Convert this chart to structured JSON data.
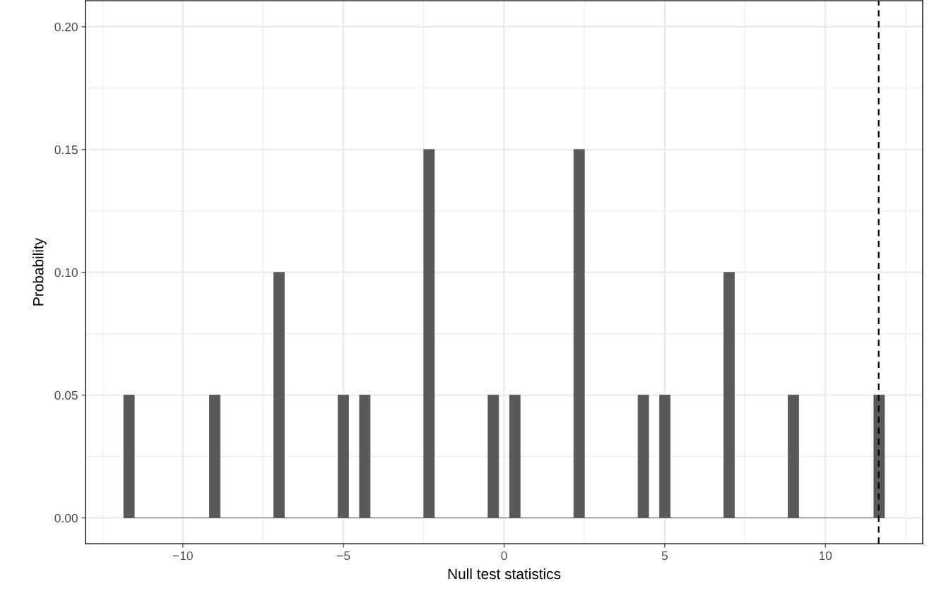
{
  "chart_data": {
    "type": "histogram",
    "xlabel": "Null test statistics",
    "ylabel": "Probability",
    "bins": [
      -11.84,
      -11.51,
      -11.17,
      -10.84,
      -10.51,
      -10.17,
      -9.84,
      -9.51,
      -9.17,
      -8.84,
      -8.5,
      -8.17,
      -7.84,
      -7.5,
      -7.17,
      -6.84,
      -6.5,
      -6.17,
      -5.84,
      -5.5,
      -5.17,
      -4.84,
      -4.5,
      -4.17,
      -3.84,
      -3.5,
      -3.17,
      -2.84,
      -2.5,
      -2.17,
      -1.83,
      -1.5,
      -1.17,
      -0.83,
      -0.5,
      -0.17,
      0.17,
      0.5,
      0.83,
      1.17,
      1.5,
      1.83,
      2.17,
      2.5,
      2.84,
      3.17,
      3.5,
      3.84,
      4.17,
      4.5,
      4.84,
      5.17,
      5.5,
      5.84,
      6.17,
      6.5,
      6.84,
      7.17,
      7.5,
      7.84,
      8.17,
      8.5,
      8.84,
      9.17,
      9.51,
      9.84,
      10.17,
      10.51,
      10.84,
      11.17,
      11.51,
      11.84
    ],
    "values": [
      0.05,
      0,
      0,
      0,
      0,
      0,
      0,
      0,
      0.05,
      0,
      0,
      0,
      0,
      0,
      0.1,
      0,
      0,
      0,
      0,
      0,
      0.05,
      0,
      0.05,
      0,
      0,
      0,
      0,
      0,
      0.15,
      0,
      0,
      0,
      0,
      0,
      0.05,
      0,
      0.05,
      0,
      0,
      0,
      0,
      0,
      0.15,
      0,
      0,
      0,
      0,
      0,
      0.05,
      0,
      0.05,
      0,
      0,
      0,
      0,
      0,
      0.1,
      0,
      0,
      0,
      0,
      0,
      0.05,
      0,
      0,
      0,
      0,
      0,
      0,
      0,
      0.05
    ],
    "color": "#595959",
    "xlim": [
      -13.03,
      13.03
    ],
    "xticks": [
      {
        "value": -10,
        "label": "−10"
      },
      {
        "value": -5,
        "label": "−5"
      },
      0,
      5,
      10
    ],
    "ylim": [
      -0.0105,
      0.2106
    ],
    "yticks": [
      {
        "value": 0,
        "label": "0.00"
      },
      {
        "value": 0.05,
        "label": "0.05"
      },
      {
        "value": 0.1,
        "label": "0.10"
      },
      {
        "value": 0.15,
        "label": "0.15"
      },
      {
        "value": 0.2,
        "label": "0.20"
      }
    ],
    "ref_lines": [
      {
        "axis": "x",
        "value": 11.66,
        "color": "#000000",
        "line_style": "dashed"
      }
    ],
    "grid": true
  }
}
